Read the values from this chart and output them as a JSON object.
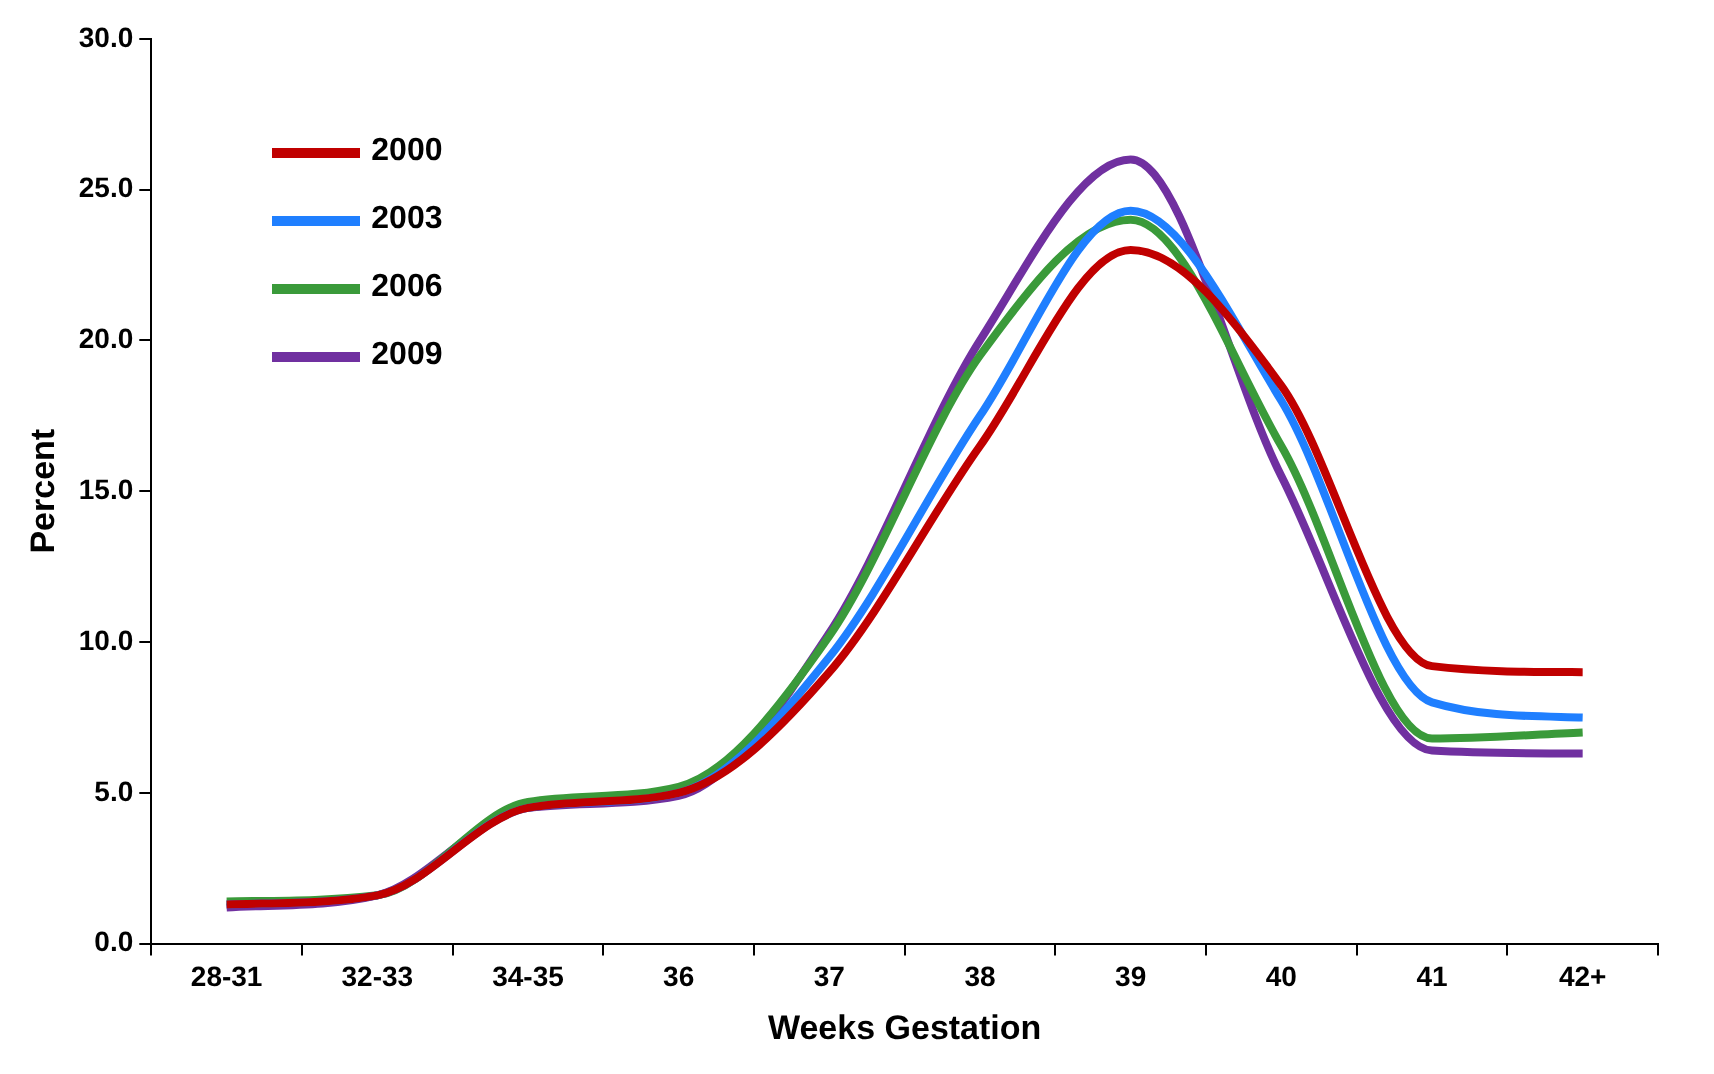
{
  "chart_data": {
    "type": "line",
    "xlabel": "Weeks Gestation",
    "ylabel": "Percent",
    "categories": [
      "28-31",
      "32-33",
      "34-35",
      "36",
      "37",
      "38",
      "39",
      "40",
      "41",
      "42+"
    ],
    "series": [
      {
        "name": "2000",
        "color": "#c00000",
        "values": [
          1.3,
          1.6,
          4.5,
          5.0,
          9.0,
          16.5,
          23.0,
          18.5,
          9.2,
          9.0
        ]
      },
      {
        "name": "2003",
        "color": "#1f7fff",
        "values": [
          1.3,
          1.6,
          4.5,
          5.0,
          9.5,
          17.5,
          24.3,
          18.0,
          8.0,
          7.5
        ]
      },
      {
        "name": "2006",
        "color": "#3a9a3a",
        "values": [
          1.4,
          1.6,
          4.7,
          5.2,
          10.2,
          19.5,
          24.0,
          16.5,
          6.8,
          7.0
        ]
      },
      {
        "name": "2009",
        "color": "#7030a0",
        "values": [
          1.2,
          1.6,
          4.5,
          4.9,
          10.3,
          20.0,
          26.0,
          15.5,
          6.4,
          6.3
        ]
      }
    ],
    "ylim": [
      0,
      30
    ],
    "yticks": [
      {
        "value": 0,
        "label": "0.0"
      },
      {
        "value": 5,
        "label": "5.0"
      },
      {
        "value": 10,
        "label": "10.0"
      },
      {
        "value": 15,
        "label": "15.0"
      },
      {
        "value": 20,
        "label": "20.0"
      },
      {
        "value": 25,
        "label": "25.0"
      },
      {
        "value": 30,
        "label": "30.0"
      }
    ],
    "grid": false,
    "legend": "top left",
    "marker": "none",
    "line_style": "solid"
  }
}
